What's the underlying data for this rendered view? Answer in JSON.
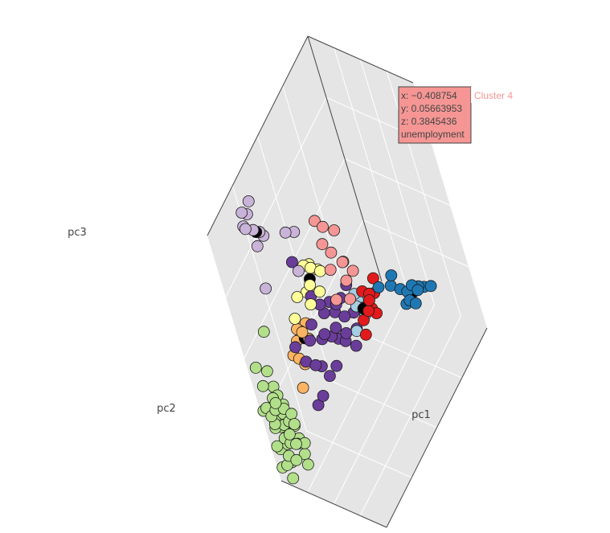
{
  "chart_data": {
    "type": "scatter3d",
    "axes": {
      "x": {
        "label": "pc1"
      },
      "y": {
        "label": "pc2"
      },
      "z": {
        "label": "pc3"
      }
    },
    "grid": true,
    "legend": "none",
    "colors": {
      "scene_bg": "#e5e5e5",
      "grid": "#ffffff",
      "marker_outline": "#1a1a1a"
    },
    "series": [
      {
        "cluster": "light-purple",
        "color": "#c9b3d8",
        "points": [
          [
            -0.8,
            -0.6,
            0.9
          ],
          [
            -0.78,
            -0.55,
            0.85
          ],
          [
            -0.82,
            -0.62,
            0.8
          ],
          [
            -0.75,
            -0.5,
            0.92
          ],
          [
            -0.7,
            -0.58,
            0.76
          ],
          [
            -0.72,
            -0.66,
            0.83
          ],
          [
            -0.68,
            -0.52,
            0.7
          ],
          [
            -0.66,
            -0.61,
            0.66
          ],
          [
            -0.74,
            -0.45,
            0.6
          ],
          [
            -0.5,
            -0.3,
            0.55
          ],
          [
            -0.45,
            -0.22,
            0.5
          ],
          [
            -0.6,
            -0.7,
            0.4
          ],
          [
            -0.38,
            -0.35,
            0.3
          ]
        ]
      },
      {
        "cluster": "pink",
        "color": "#f59694",
        "points": [
          [
            -0.4,
            0.05,
            0.38
          ],
          [
            -0.35,
            0.1,
            0.3
          ],
          [
            -0.3,
            0.0,
            0.25
          ],
          [
            -0.25,
            0.05,
            0.15
          ],
          [
            -0.2,
            -0.05,
            0.1
          ],
          [
            -0.15,
            0.1,
            0.05
          ],
          [
            -0.22,
            0.15,
            0.0
          ],
          [
            -0.1,
            0.05,
            -0.05
          ],
          [
            -0.3,
            0.2,
            0.2
          ],
          [
            -0.18,
            -0.1,
            -0.1
          ],
          [
            -0.05,
            0.0,
            -0.15
          ],
          [
            -0.12,
            0.18,
            -0.08
          ]
        ]
      },
      {
        "cluster": "yellow",
        "color": "#ffff99",
        "points": [
          [
            -0.5,
            -0.2,
            0.2
          ],
          [
            -0.45,
            -0.15,
            0.15
          ],
          [
            -0.4,
            -0.25,
            0.1
          ],
          [
            -0.55,
            -0.1,
            0.12
          ],
          [
            -0.48,
            -0.05,
            0.05
          ],
          [
            -0.35,
            -0.18,
            0.0
          ],
          [
            -0.42,
            -0.3,
            -0.02
          ],
          [
            -0.52,
            -0.25,
            0.02
          ],
          [
            -0.38,
            -0.08,
            0.08
          ],
          [
            -0.58,
            -0.35,
            0.05
          ],
          [
            -0.6,
            -0.45,
            -0.05
          ]
        ]
      },
      {
        "cluster": "dark-purple",
        "color": "#6a3d9a",
        "points": [
          [
            -0.55,
            -0.3,
            0.3
          ],
          [
            -0.45,
            -0.25,
            0.0
          ],
          [
            -0.4,
            -0.2,
            -0.1
          ],
          [
            -0.35,
            -0.1,
            -0.15
          ],
          [
            -0.3,
            -0.05,
            -0.2
          ],
          [
            -0.25,
            0.0,
            -0.18
          ],
          [
            -0.45,
            -0.35,
            -0.15
          ],
          [
            -0.5,
            -0.4,
            -0.25
          ],
          [
            -0.4,
            -0.3,
            -0.3
          ],
          [
            -0.35,
            -0.2,
            -0.35
          ],
          [
            -0.3,
            -0.15,
            -0.4
          ],
          [
            -0.2,
            -0.05,
            -0.28
          ],
          [
            -0.15,
            0.05,
            -0.32
          ],
          [
            -0.25,
            -0.1,
            -0.45
          ],
          [
            -0.45,
            -0.45,
            -0.4
          ],
          [
            -0.55,
            -0.5,
            -0.35
          ],
          [
            -0.5,
            -0.35,
            -0.5
          ],
          [
            -0.35,
            -0.25,
            -0.55
          ],
          [
            -0.3,
            -0.4,
            -0.5
          ],
          [
            -0.6,
            -0.55,
            -0.2
          ],
          [
            -0.4,
            -0.5,
            -0.6
          ],
          [
            -0.1,
            0.0,
            -0.4
          ],
          [
            -0.2,
            -0.2,
            -0.25
          ],
          [
            -0.38,
            -0.05,
            -0.28
          ],
          [
            -0.28,
            -0.32,
            -0.22
          ],
          [
            -0.15,
            -0.12,
            -0.35
          ],
          [
            -0.45,
            -0.15,
            -0.22
          ],
          [
            -0.48,
            -0.55,
            -0.65
          ],
          [
            -0.05,
            -0.1,
            -0.45
          ],
          [
            -0.22,
            0.1,
            -0.15
          ]
        ]
      },
      {
        "cluster": "orange",
        "color": "#fdb462",
        "points": [
          [
            -0.65,
            -0.4,
            -0.2
          ],
          [
            -0.7,
            -0.45,
            -0.25
          ],
          [
            -0.6,
            -0.35,
            -0.3
          ],
          [
            -0.68,
            -0.5,
            -0.35
          ],
          [
            -0.58,
            -0.42,
            -0.18
          ],
          [
            -0.72,
            -0.38,
            -0.28
          ],
          [
            -0.62,
            -0.48,
            -0.4
          ],
          [
            -0.66,
            -0.3,
            -0.22
          ],
          [
            -0.55,
            -0.38,
            -0.26
          ],
          [
            -0.75,
            -0.52,
            -0.32
          ],
          [
            -0.7,
            -0.55,
            -0.55
          ],
          [
            -0.64,
            -0.44,
            -0.15
          ]
        ]
      },
      {
        "cluster": "light-blue",
        "color": "#a6cee3",
        "points": [
          [
            -0.1,
            0.1,
            -0.2
          ],
          [
            -0.05,
            0.05,
            -0.25
          ],
          [
            -0.15,
            0.15,
            -0.3
          ],
          [
            0.0,
            0.1,
            -0.35
          ],
          [
            -0.08,
            -0.02,
            -0.4
          ]
        ]
      },
      {
        "cluster": "red",
        "color": "#e31a1c",
        "points": [
          [
            0.0,
            0.15,
            -0.2
          ],
          [
            0.05,
            0.2,
            -0.25
          ],
          [
            0.1,
            0.1,
            -0.3
          ],
          [
            0.02,
            0.05,
            -0.35
          ],
          [
            0.08,
            0.25,
            -0.28
          ],
          [
            0.12,
            0.18,
            -0.38
          ],
          [
            -0.02,
            0.22,
            -0.4
          ],
          [
            0.15,
            0.12,
            -0.22
          ],
          [
            0.06,
            0.0,
            -0.42
          ],
          [
            -0.05,
            0.12,
            -0.32
          ],
          [
            0.1,
            0.28,
            -0.18
          ]
        ]
      },
      {
        "cluster": "dark-blue",
        "color": "#1f78b4",
        "points": [
          [
            0.4,
            0.3,
            -0.2
          ],
          [
            0.5,
            0.35,
            -0.25
          ],
          [
            0.55,
            0.4,
            -0.3
          ],
          [
            0.6,
            0.45,
            -0.28
          ],
          [
            0.65,
            0.5,
            -0.32
          ],
          [
            0.58,
            0.38,
            -0.35
          ],
          [
            0.62,
            0.42,
            -0.4
          ],
          [
            0.52,
            0.48,
            -0.38
          ],
          [
            0.7,
            0.45,
            -0.3
          ],
          [
            0.68,
            0.55,
            -0.36
          ],
          [
            0.45,
            0.4,
            -0.42
          ],
          [
            0.75,
            0.6,
            -0.38
          ],
          [
            0.3,
            0.2,
            -0.15
          ],
          [
            0.48,
            0.3,
            -0.1
          ]
        ]
      },
      {
        "cluster": "light-green",
        "color": "#b2df8a",
        "points": [
          [
            -0.9,
            -0.95,
            -0.1
          ],
          [
            -0.85,
            -0.85,
            -0.2
          ],
          [
            -0.75,
            -0.8,
            0.1
          ],
          [
            -0.7,
            -0.95,
            -0.35
          ],
          [
            -0.95,
            -0.9,
            -0.3
          ],
          [
            -0.88,
            -0.98,
            -0.4
          ],
          [
            -0.8,
            -0.92,
            -0.45
          ],
          [
            -0.92,
            -0.85,
            -0.5
          ],
          [
            -0.85,
            -0.95,
            -0.55
          ],
          [
            -0.78,
            -0.88,
            -0.6
          ],
          [
            -0.9,
            -0.8,
            -0.65
          ],
          [
            -0.82,
            -0.9,
            -0.7
          ],
          [
            -0.95,
            -0.95,
            -0.75
          ],
          [
            -0.88,
            -0.85,
            -0.8
          ],
          [
            -0.8,
            -0.98,
            -0.85
          ],
          [
            -0.92,
            -0.92,
            -0.62
          ],
          [
            -0.86,
            -0.96,
            -0.48
          ],
          [
            -0.76,
            -0.86,
            -0.52
          ],
          [
            -0.84,
            -0.82,
            -0.42
          ],
          [
            -0.94,
            -0.88,
            -0.58
          ],
          [
            -0.72,
            -0.9,
            -0.72
          ],
          [
            -0.9,
            -0.99,
            -0.88
          ],
          [
            -0.82,
            -0.78,
            -0.66
          ],
          [
            -0.7,
            -0.85,
            -0.58
          ],
          [
            -0.96,
            -0.82,
            -0.7
          ],
          [
            -0.74,
            -0.96,
            -0.78
          ],
          [
            -0.86,
            -0.88,
            -0.92
          ],
          [
            -0.78,
            -0.92,
            -0.35
          ],
          [
            -0.98,
            -0.97,
            -0.45
          ],
          [
            -0.88,
            -0.76,
            -0.55
          ],
          [
            -0.68,
            -0.88,
            -0.45
          ],
          [
            -0.72,
            -0.78,
            -0.78
          ],
          [
            -0.65,
            -0.92,
            -0.62
          ],
          [
            -0.6,
            -0.85,
            -0.5
          ],
          [
            -0.62,
            -0.95,
            -0.8
          ],
          [
            -0.58,
            -0.9,
            -0.7
          ],
          [
            -0.94,
            -0.78,
            -0.4
          ],
          [
            -0.98,
            -0.9,
            -0.82
          ],
          [
            -0.55,
            -0.88,
            -0.55
          ],
          [
            -0.66,
            -0.8,
            -0.88
          ],
          [
            -0.76,
            -0.98,
            -0.95
          ],
          [
            -0.84,
            -0.72,
            -0.75
          ],
          [
            -0.52,
            -0.95,
            -0.65
          ],
          [
            -0.5,
            -0.85,
            -0.72
          ],
          [
            -0.48,
            -0.9,
            -0.85
          ]
        ]
      },
      {
        "cluster": "centroids",
        "color": "#000000",
        "points": [
          [
            -0.7,
            -0.55,
            0.72
          ],
          [
            -0.45,
            -0.2,
            0.1
          ],
          [
            -0.6,
            -0.4,
            -0.25
          ],
          [
            0.0,
            0.1,
            -0.3
          ],
          [
            0.55,
            0.45,
            -0.35
          ]
        ]
      }
    ],
    "hover": {
      "lines": [
        "x: −0.408754",
        "y: 0.05663953",
        "z: 0.3845436",
        "unemployment"
      ],
      "name": "Cluster 4",
      "bgcolor": "#f59694",
      "point": [
        -0.408754,
        0.05663953,
        0.3845436
      ]
    }
  }
}
